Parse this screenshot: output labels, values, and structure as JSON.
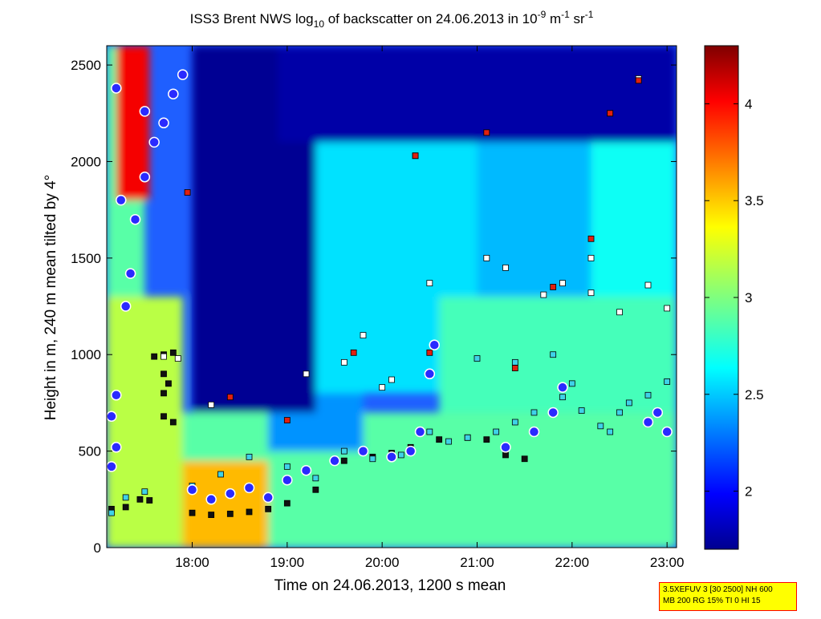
{
  "chart_data": {
    "type": "heatmap",
    "title": {
      "prefix": "ISS3 Brent NWS log",
      "prefix_sub": "10",
      "middle": " of backscatter on 24.06.2013 in 10",
      "exp1": "-9",
      "unit_m": " m",
      "exp2": "-1",
      "unit_sr": " sr",
      "exp3": "-1"
    },
    "xlabel": "Time on 24.06.2013, 1200 s mean",
    "ylabel": "Height in m, 240 m mean tilted by 4°",
    "x_range_hours": [
      17.1,
      23.1
    ],
    "x_ticks": [
      {
        "value": 18,
        "label": "18:00"
      },
      {
        "value": 19,
        "label": "19:00"
      },
      {
        "value": 20,
        "label": "20:00"
      },
      {
        "value": 21,
        "label": "21:00"
      },
      {
        "value": 22,
        "label": "22:00"
      },
      {
        "value": 23,
        "label": "23:00"
      }
    ],
    "ylim": [
      0,
      2600
    ],
    "y_ticks": [
      {
        "value": 0,
        "label": "0"
      },
      {
        "value": 500,
        "label": "500"
      },
      {
        "value": 1000,
        "label": "1000"
      },
      {
        "value": 1500,
        "label": "1500"
      },
      {
        "value": 2000,
        "label": "2000"
      },
      {
        "value": 2500,
        "label": "2500"
      }
    ],
    "colorbar": {
      "range": [
        1.7,
        4.3
      ],
      "colormap": "jet",
      "ticks": [
        {
          "value": 2,
          "label": "2"
        },
        {
          "value": 2.5,
          "label": "2.5"
        },
        {
          "value": 3,
          "label": "3"
        },
        {
          "value": 3.5,
          "label": "3.5"
        },
        {
          "value": 4,
          "label": "4"
        }
      ]
    },
    "colors": {
      "low": "#00008f",
      "mid": "#7fff7f",
      "high": "#7f0000",
      "marker_cyan": "#3fd2e8",
      "marker_white": "#ffffff",
      "marker_red": "#e02010",
      "marker_black": "#111111",
      "marker_blue_dot": "#2a2aff",
      "marker_blue_ring": "#ffffff"
    },
    "field_regions": [
      {
        "t0": 17.1,
        "t1": 17.9,
        "h0": 0,
        "h1": 1300,
        "value": 3.15
      },
      {
        "t0": 17.1,
        "t1": 17.5,
        "h0": 1300,
        "h1": 2600,
        "value": 2.9
      },
      {
        "t0": 17.2,
        "t1": 17.55,
        "h0": 1800,
        "h1": 2600,
        "value": 4.0
      },
      {
        "t0": 17.9,
        "t1": 23.1,
        "h0": 0,
        "h1": 700,
        "value": 2.9
      },
      {
        "t0": 17.9,
        "t1": 18.8,
        "h0": 0,
        "h1": 450,
        "value": 3.5
      },
      {
        "t0": 18.8,
        "t1": 19.8,
        "h0": 500,
        "h1": 800,
        "value": 2.4
      },
      {
        "t0": 18.0,
        "t1": 19.3,
        "h0": 700,
        "h1": 2600,
        "value": 1.75
      },
      {
        "t0": 19.3,
        "t1": 21.0,
        "h0": 800,
        "h1": 2100,
        "value": 2.6
      },
      {
        "t0": 21.0,
        "t1": 22.2,
        "h0": 800,
        "h1": 2400,
        "value": 2.5
      },
      {
        "t0": 22.2,
        "t1": 23.1,
        "h0": 1000,
        "h1": 2400,
        "value": 2.7
      },
      {
        "t0": 18.9,
        "t1": 23.1,
        "h0": 2100,
        "h1": 2600,
        "value": 1.8
      },
      {
        "t0": 20.6,
        "t1": 23.1,
        "h0": 700,
        "h1": 1300,
        "value": 2.85
      }
    ],
    "series": [
      {
        "name": "black",
        "points": [
          [
            17.15,
            200
          ],
          [
            17.3,
            210
          ],
          [
            17.45,
            250
          ],
          [
            17.55,
            245
          ],
          [
            18.0,
            180
          ],
          [
            18.2,
            170
          ],
          [
            18.4,
            175
          ],
          [
            18.6,
            185
          ],
          [
            18.8,
            200
          ],
          [
            19.0,
            230
          ],
          [
            19.3,
            300
          ],
          [
            19.6,
            450
          ],
          [
            19.9,
            470
          ],
          [
            20.1,
            490
          ],
          [
            20.3,
            520
          ],
          [
            20.6,
            560
          ],
          [
            20.9,
            570
          ],
          [
            21.1,
            560
          ],
          [
            21.3,
            480
          ],
          [
            21.5,
            460
          ],
          [
            17.6,
            990
          ],
          [
            17.7,
            1000
          ],
          [
            17.8,
            1010
          ],
          [
            17.7,
            900
          ],
          [
            17.75,
            850
          ],
          [
            17.7,
            800
          ],
          [
            17.7,
            680
          ],
          [
            17.8,
            650
          ]
        ]
      },
      {
        "name": "cyan",
        "points": [
          [
            17.15,
            180
          ],
          [
            17.3,
            260
          ],
          [
            17.5,
            290
          ],
          [
            18.0,
            320
          ],
          [
            18.3,
            380
          ],
          [
            18.6,
            470
          ],
          [
            19.0,
            420
          ],
          [
            19.3,
            360
          ],
          [
            19.6,
            500
          ],
          [
            19.9,
            460
          ],
          [
            20.2,
            480
          ],
          [
            20.5,
            600
          ],
          [
            20.7,
            550
          ],
          [
            20.9,
            570
          ],
          [
            21.2,
            600
          ],
          [
            21.4,
            650
          ],
          [
            21.6,
            700
          ],
          [
            21.9,
            780
          ],
          [
            22.1,
            710
          ],
          [
            22.3,
            630
          ],
          [
            22.5,
            700
          ],
          [
            22.8,
            790
          ],
          [
            23.0,
            860
          ],
          [
            21.0,
            980
          ],
          [
            21.4,
            960
          ],
          [
            21.8,
            1000
          ],
          [
            22.0,
            850
          ],
          [
            22.4,
            600
          ],
          [
            22.6,
            750
          ]
        ]
      },
      {
        "name": "white",
        "points": [
          [
            17.7,
            990
          ],
          [
            17.85,
            980
          ],
          [
            18.2,
            740
          ],
          [
            19.2,
            900
          ],
          [
            19.6,
            960
          ],
          [
            19.8,
            1100
          ],
          [
            20.0,
            830
          ],
          [
            20.1,
            870
          ],
          [
            20.35,
            2030
          ],
          [
            20.5,
            1370
          ],
          [
            21.1,
            1500
          ],
          [
            21.3,
            1450
          ],
          [
            21.7,
            1310
          ],
          [
            21.9,
            1370
          ],
          [
            22.2,
            1320
          ],
          [
            22.4,
            2250
          ],
          [
            22.7,
            2430
          ],
          [
            22.8,
            1360
          ],
          [
            23.0,
            1240
          ],
          [
            22.2,
            1500
          ],
          [
            22.5,
            1220
          ]
        ]
      },
      {
        "name": "red",
        "points": [
          [
            17.95,
            1840
          ],
          [
            18.4,
            780
          ],
          [
            19.0,
            660
          ],
          [
            20.35,
            2030
          ],
          [
            21.1,
            2150
          ],
          [
            21.4,
            930
          ],
          [
            21.8,
            1350
          ],
          [
            22.2,
            1600
          ],
          [
            22.4,
            2250
          ],
          [
            22.7,
            2420
          ],
          [
            20.5,
            1010
          ],
          [
            19.7,
            1010
          ]
        ]
      },
      {
        "name": "blue",
        "points": [
          [
            17.15,
            680
          ],
          [
            17.2,
            790
          ],
          [
            17.3,
            1250
          ],
          [
            17.35,
            1420
          ],
          [
            17.4,
            1700
          ],
          [
            17.5,
            1920
          ],
          [
            17.6,
            2100
          ],
          [
            17.7,
            2200
          ],
          [
            17.8,
            2350
          ],
          [
            17.9,
            2450
          ],
          [
            17.5,
            2260
          ],
          [
            17.2,
            2380
          ],
          [
            17.25,
            1800
          ],
          [
            17.15,
            420
          ],
          [
            17.2,
            520
          ],
          [
            18.0,
            300
          ],
          [
            18.2,
            250
          ],
          [
            18.4,
            280
          ],
          [
            18.6,
            310
          ],
          [
            18.8,
            260
          ],
          [
            19.0,
            350
          ],
          [
            19.2,
            400
          ],
          [
            19.5,
            450
          ],
          [
            19.8,
            500
          ],
          [
            20.1,
            470
          ],
          [
            20.4,
            600
          ],
          [
            20.5,
            900
          ],
          [
            20.55,
            1050
          ],
          [
            20.3,
            500
          ],
          [
            21.3,
            520
          ],
          [
            21.6,
            600
          ],
          [
            21.8,
            700
          ],
          [
            21.9,
            830
          ],
          [
            22.8,
            650
          ],
          [
            23.0,
            600
          ],
          [
            22.9,
            700
          ]
        ]
      }
    ]
  },
  "stamp": {
    "line1": "3.5XEFUV 3 [30 2500] NH 600",
    "line2": "MB 200 RG 15% TI 0 HI 15"
  }
}
